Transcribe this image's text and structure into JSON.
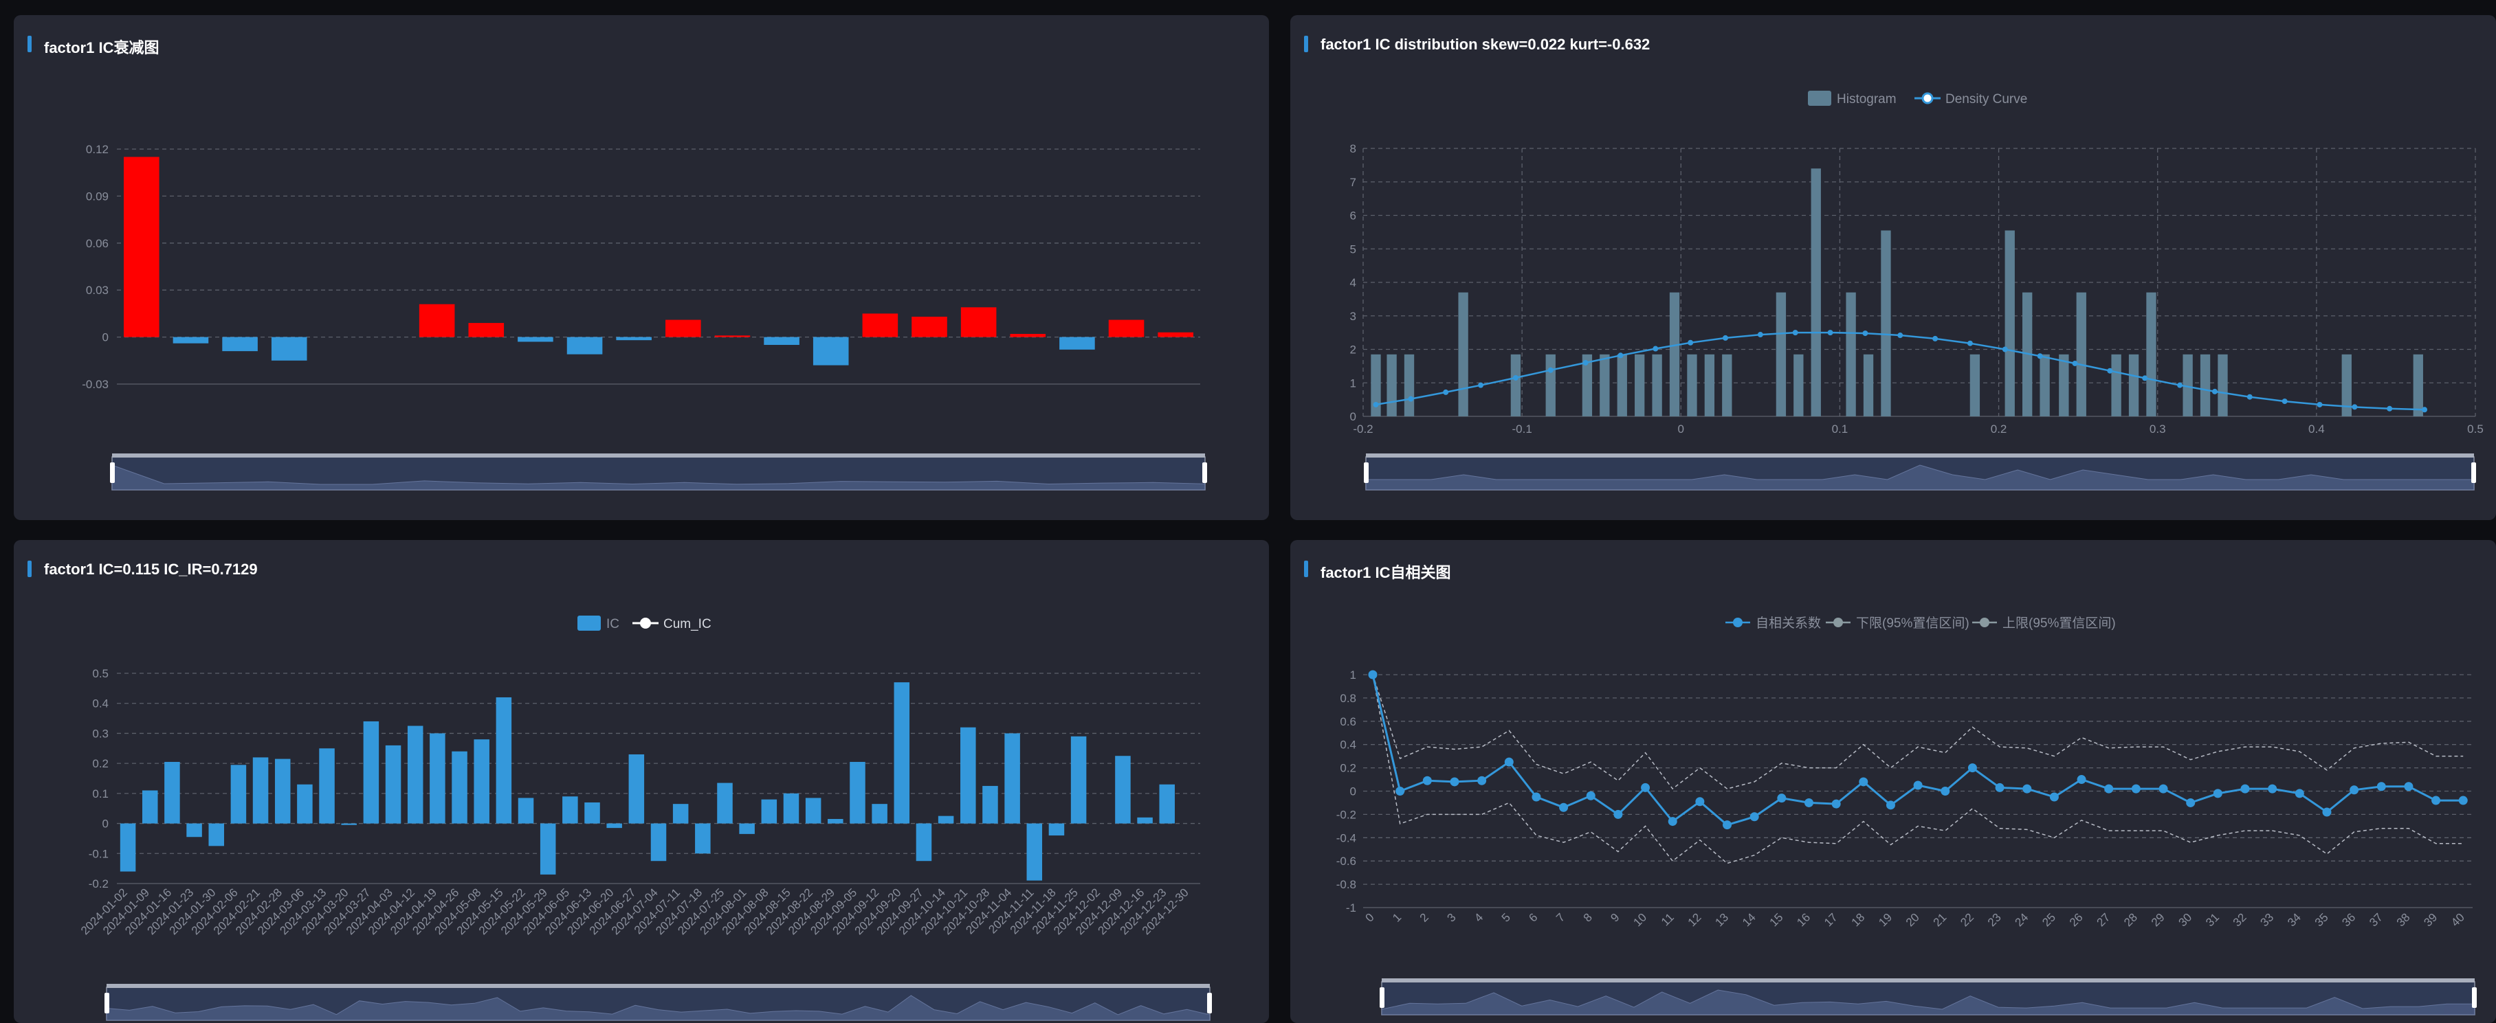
{
  "colors": {
    "background": "#0d0e12",
    "panel": "#262833",
    "accent": "#2f8fd8",
    "red": "#ff0000",
    "blue_bar": "#3498db",
    "hist": "#5d7f93",
    "grid": "#5c606b"
  },
  "panels": {
    "p1": {
      "title": "factor1 IC衰减图"
    },
    "p2": {
      "title": "factor1 IC distribution skew=0.022 kurt=-0.632"
    },
    "p3": {
      "title": "factor1 IC=0.115 IC_IR=0.7129"
    },
    "p4": {
      "title": "factor1 IC自相关图"
    }
  },
  "chart_data": [
    {
      "id": "decay",
      "type": "bar",
      "title": "factor1 IC衰减图",
      "yticks": [
        "0.12",
        "0.09",
        "0.06",
        "0.03",
        "0",
        "-0.03"
      ],
      "ylim": [
        -0.03,
        0.12
      ],
      "values": [
        0.115,
        -0.004,
        -0.009,
        -0.015,
        0,
        0,
        0.021,
        0.009,
        -0.003,
        -0.011,
        -0.002,
        0.011,
        0.001,
        -0.005,
        -0.018,
        0.015,
        0.013,
        0.019,
        0.002,
        -0.008,
        0.011,
        0.003
      ],
      "positive_color": "#ff0000",
      "negative_color": "#3498db",
      "grid": true,
      "has_zoom_slider": true
    },
    {
      "id": "distribution",
      "type": "bar",
      "title": "factor1 IC distribution skew=0.022 kurt=-0.632",
      "legend": [
        "Histogram",
        "Density Curve"
      ],
      "xticks": [
        "-0.2",
        "-0.1",
        "0",
        "0.1",
        "0.2",
        "0.3",
        "0.4",
        "0.5"
      ],
      "yticks": [
        "8",
        "7",
        "6",
        "5",
        "4",
        "3",
        "2",
        "1",
        "0"
      ],
      "xlim": [
        -0.2,
        0.5
      ],
      "ylim": [
        0,
        8
      ],
      "histogram": [
        {
          "x": -0.192,
          "y": 1.85
        },
        {
          "x": -0.182,
          "y": 1.85
        },
        {
          "x": -0.171,
          "y": 1.85
        },
        {
          "x": -0.137,
          "y": 3.7
        },
        {
          "x": -0.104,
          "y": 1.85
        },
        {
          "x": -0.082,
          "y": 1.85
        },
        {
          "x": -0.059,
          "y": 1.85
        },
        {
          "x": -0.048,
          "y": 1.85
        },
        {
          "x": -0.037,
          "y": 1.85
        },
        {
          "x": -0.026,
          "y": 1.85
        },
        {
          "x": -0.015,
          "y": 1.85
        },
        {
          "x": -0.004,
          "y": 3.7
        },
        {
          "x": 0.007,
          "y": 1.85
        },
        {
          "x": 0.018,
          "y": 1.85
        },
        {
          "x": 0.029,
          "y": 1.85
        },
        {
          "x": 0.063,
          "y": 3.7
        },
        {
          "x": 0.074,
          "y": 1.85
        },
        {
          "x": 0.085,
          "y": 7.4
        },
        {
          "x": 0.107,
          "y": 3.7
        },
        {
          "x": 0.118,
          "y": 1.85
        },
        {
          "x": 0.129,
          "y": 5.55
        },
        {
          "x": 0.185,
          "y": 1.85
        },
        {
          "x": 0.207,
          "y": 5.55
        },
        {
          "x": 0.218,
          "y": 3.7
        },
        {
          "x": 0.229,
          "y": 1.85
        },
        {
          "x": 0.241,
          "y": 1.85
        },
        {
          "x": 0.252,
          "y": 3.7
        },
        {
          "x": 0.274,
          "y": 1.85
        },
        {
          "x": 0.285,
          "y": 1.85
        },
        {
          "x": 0.296,
          "y": 3.7
        },
        {
          "x": 0.319,
          "y": 1.85
        },
        {
          "x": 0.33,
          "y": 1.85
        },
        {
          "x": 0.341,
          "y": 1.85
        },
        {
          "x": 0.419,
          "y": 1.85
        },
        {
          "x": 0.464,
          "y": 1.85
        }
      ],
      "density": {
        "x": [
          -0.192,
          -0.17,
          -0.148,
          -0.126,
          -0.104,
          -0.082,
          -0.06,
          -0.038,
          -0.016,
          0.006,
          0.028,
          0.05,
          0.072,
          0.094,
          0.116,
          0.138,
          0.16,
          0.182,
          0.204,
          0.226,
          0.248,
          0.27,
          0.292,
          0.314,
          0.336,
          0.358,
          0.38,
          0.402,
          0.424,
          0.446,
          0.468
        ],
        "y": [
          0.35,
          0.52,
          0.72,
          0.93,
          1.15,
          1.38,
          1.6,
          1.82,
          2.02,
          2.2,
          2.34,
          2.44,
          2.5,
          2.5,
          2.48,
          2.42,
          2.32,
          2.18,
          2.0,
          1.8,
          1.58,
          1.36,
          1.14,
          0.93,
          0.74,
          0.58,
          0.45,
          0.35,
          0.28,
          0.23,
          0.2
        ]
      },
      "grid": true,
      "has_zoom_slider": true
    },
    {
      "id": "ic_series",
      "type": "bar",
      "title": "factor1 IC=0.115 IC_IR=0.7129",
      "legend": [
        "IC",
        "Cum_IC"
      ],
      "yticks": [
        "0.5",
        "0.4",
        "0.3",
        "0.2",
        "0.1",
        "0",
        "-0.1",
        "-0.2"
      ],
      "ylim": [
        -0.2,
        0.5
      ],
      "categories": [
        "2024-01-02",
        "2024-01-09",
        "2024-01-16",
        "2024-01-23",
        "2024-01-30",
        "2024-02-06",
        "2024-02-21",
        "2024-02-28",
        "2024-03-06",
        "2024-03-13",
        "2024-03-20",
        "2024-03-27",
        "2024-04-03",
        "2024-04-12",
        "2024-04-19",
        "2024-04-26",
        "2024-05-08",
        "2024-05-15",
        "2024-05-22",
        "2024-05-29",
        "2024-06-05",
        "2024-06-13",
        "2024-06-20",
        "2024-06-27",
        "2024-07-04",
        "2024-07-11",
        "2024-07-18",
        "2024-07-25",
        "2024-08-01",
        "2024-08-08",
        "2024-08-15",
        "2024-08-22",
        "2024-08-29",
        "2024-09-05",
        "2024-09-12",
        "2024-09-20",
        "2024-09-27",
        "2024-10-14",
        "2024-10-21",
        "2024-10-28",
        "2024-11-04",
        "2024-11-11",
        "2024-11-18",
        "2024-11-25",
        "2024-12-02",
        "2024-12-09",
        "2024-12-16",
        "2024-12-23",
        "2024-12-30"
      ],
      "values": [
        -0.16,
        0.11,
        0.205,
        -0.045,
        -0.075,
        0.195,
        0.22,
        0.215,
        0.13,
        0.25,
        -0.005,
        0.34,
        0.26,
        0.325,
        0.3,
        0.24,
        0.28,
        0.42,
        0.085,
        -0.17,
        0.09,
        0.07,
        -0.015,
        0.23,
        -0.125,
        0.065,
        -0.1,
        0.135,
        -0.035,
        0.08,
        0.1,
        0.085,
        0.015,
        0.205,
        0.065,
        0.47,
        -0.125,
        0.025,
        0.32,
        0.125,
        0.3,
        -0.19,
        -0.04,
        0.29,
        0,
        0.225,
        0.02,
        0.13,
        0
      ],
      "grid": true,
      "has_zoom_slider": true
    },
    {
      "id": "autocorr",
      "type": "line",
      "title": "factor1 IC自相关图",
      "legend": [
        "自相关系数",
        "下限(95%置信区间)",
        "上限(95%置信区间)"
      ],
      "yticks": [
        "1",
        "0.8",
        "0.6",
        "0.4",
        "0.2",
        "0",
        "-0.2",
        "-0.4",
        "-0.6",
        "-0.8",
        "-1"
      ],
      "ylim": [
        -1,
        1
      ],
      "x": [
        "0",
        "1",
        "2",
        "3",
        "4",
        "5",
        "6",
        "7",
        "8",
        "9",
        "10",
        "11",
        "12",
        "13",
        "14",
        "15",
        "16",
        "17",
        "18",
        "19",
        "20",
        "21",
        "22",
        "23",
        "24",
        "25",
        "26",
        "27",
        "28",
        "29",
        "30",
        "31",
        "32",
        "33",
        "34",
        "35",
        "36",
        "37",
        "38",
        "39",
        "40"
      ],
      "series": [
        {
          "name": "自相关系数",
          "values": [
            1,
            0,
            0.09,
            0.08,
            0.09,
            0.25,
            -0.05,
            -0.14,
            -0.04,
            -0.2,
            0.03,
            -0.26,
            -0.09,
            -0.29,
            -0.22,
            -0.06,
            -0.1,
            -0.11,
            0.08,
            -0.12,
            0.05,
            0,
            0.2,
            0.03,
            0.02,
            -0.05,
            0.1,
            0.02,
            0.02,
            0.02,
            -0.1,
            -0.02,
            0.02,
            0.02,
            -0.02,
            -0.18,
            0.01,
            0.04,
            0.04,
            -0.08,
            -0.08
          ]
        },
        {
          "name": "下限(95%置信区间)",
          "values": [
            1,
            -0.28,
            -0.2,
            -0.2,
            -0.2,
            -0.1,
            -0.38,
            -0.44,
            -0.35,
            -0.52,
            -0.3,
            -0.6,
            -0.42,
            -0.62,
            -0.55,
            -0.4,
            -0.44,
            -0.45,
            -0.26,
            -0.46,
            -0.3,
            -0.34,
            -0.15,
            -0.32,
            -0.33,
            -0.4,
            -0.25,
            -0.34,
            -0.34,
            -0.34,
            -0.44,
            -0.38,
            -0.34,
            -0.34,
            -0.38,
            -0.54,
            -0.35,
            -0.32,
            -0.32,
            -0.45,
            -0.45
          ]
        },
        {
          "name": "上限(95%置信区间)",
          "values": [
            1,
            0.28,
            0.38,
            0.36,
            0.38,
            0.52,
            0.23,
            0.15,
            0.25,
            0.09,
            0.33,
            0.02,
            0.2,
            0.02,
            0.08,
            0.24,
            0.2,
            0.2,
            0.4,
            0.2,
            0.38,
            0.33,
            0.55,
            0.38,
            0.37,
            0.3,
            0.46,
            0.37,
            0.38,
            0.38,
            0.27,
            0.34,
            0.38,
            0.38,
            0.34,
            0.18,
            0.37,
            0.41,
            0.42,
            0.3,
            0.3
          ]
        }
      ],
      "grid": true,
      "has_zoom_slider": true
    }
  ]
}
